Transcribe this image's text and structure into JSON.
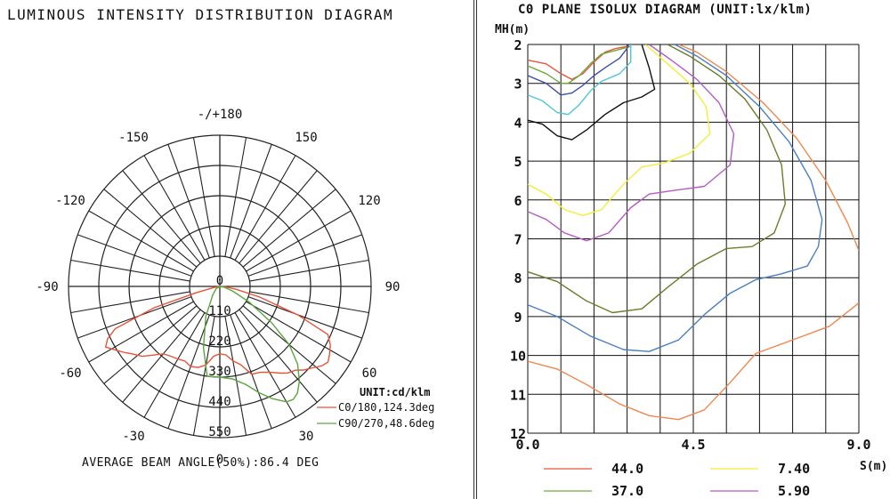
{
  "polar": {
    "title": "LUMINOUS INTENSITY DISTRIBUTION DIAGRAM",
    "footer": "AVERAGE BEAM ANGLE(50%):86.4 DEG",
    "unit_label": "UNIT:cd/klm",
    "legend": [
      {
        "label": "C0/180,124.3deg",
        "color": "#e8533a"
      },
      {
        "label": "C90/270,48.6deg",
        "color": "#5aa63c"
      }
    ]
  },
  "isolux": {
    "title": "C0 PLANE ISOLUX DIAGRAM (UNIT:lx/klm)",
    "y_axis_label": "MH(m)",
    "x_axis_label": "S(m)",
    "legend": [
      {
        "value": "44.0",
        "color": "#e8533a"
      },
      {
        "value": "7.40",
        "color": "#f2ee3a"
      },
      {
        "value": "37.0",
        "color": "#6faa3c"
      },
      {
        "value": "5.90",
        "color": "#b45cc4"
      }
    ]
  },
  "chart_data": [
    {
      "type": "polar",
      "title": "LUMINOUS INTENSITY DISTRIBUTION DIAGRAM",
      "unit": "cd/klm",
      "radial_ticks": [
        0,
        110,
        220,
        330,
        440,
        550
      ],
      "radial_max": 550,
      "angle_ticks": [
        "-/+180",
        "150",
        "120",
        "90",
        "60",
        "30",
        "0",
        "-30",
        "-60",
        "-90",
        "-120",
        "-150"
      ],
      "grid": true,
      "series": [
        {
          "name": "C0/180,124.3deg",
          "color": "#e8533a",
          "points": [
            [
              -90,
              0
            ],
            [
              -80,
              20
            ],
            [
              -75,
              90
            ],
            [
              -72,
              250
            ],
            [
              -68,
              410
            ],
            [
              -65,
              450
            ],
            [
              -62,
              470
            ],
            [
              -58,
              440
            ],
            [
              -55,
              420
            ],
            [
              -52,
              400
            ],
            [
              -48,
              380
            ],
            [
              -45,
              355
            ],
            [
              -40,
              320
            ],
            [
              -35,
              310
            ],
            [
              -30,
              305
            ],
            [
              -25,
              300
            ],
            [
              -20,
              310
            ],
            [
              -15,
              305
            ],
            [
              -10,
              290
            ],
            [
              -5,
              255
            ],
            [
              0,
              245
            ],
            [
              5,
              250
            ],
            [
              10,
              275
            ],
            [
              15,
              295
            ],
            [
              20,
              340
            ],
            [
              25,
              345
            ],
            [
              30,
              360
            ],
            [
              35,
              385
            ],
            [
              38,
              400
            ],
            [
              42,
              410
            ],
            [
              45,
              430
            ],
            [
              48,
              445
            ],
            [
              52,
              470
            ],
            [
              55,
              480
            ],
            [
              58,
              470
            ],
            [
              62,
              455
            ],
            [
              66,
              430
            ],
            [
              70,
              300
            ],
            [
              75,
              150
            ],
            [
              80,
              60
            ],
            [
              85,
              20
            ],
            [
              90,
              0
            ]
          ]
        },
        {
          "name": "C90/270,48.6deg",
          "color": "#5aa63c",
          "points": [
            [
              -90,
              0
            ],
            [
              -60,
              15
            ],
            [
              -40,
              40
            ],
            [
              -25,
              120
            ],
            [
              -15,
              230
            ],
            [
              -8,
              330
            ],
            [
              0,
              330
            ],
            [
              8,
              340
            ],
            [
              15,
              370
            ],
            [
              20,
              410
            ],
            [
              25,
              450
            ],
            [
              28,
              470
            ],
            [
              30,
              485
            ],
            [
              33,
              490
            ],
            [
              36,
              480
            ],
            [
              40,
              450
            ],
            [
              45,
              400
            ],
            [
              50,
              330
            ],
            [
              55,
              230
            ],
            [
              62,
              120
            ],
            [
              70,
              50
            ],
            [
              80,
              15
            ],
            [
              90,
              0
            ]
          ]
        }
      ]
    },
    {
      "type": "line",
      "title": "C0 PLANE ISOLUX DIAGRAM (UNIT:lx/klm)",
      "xlabel": "S(m",
      "ylabel": "MH(m)",
      "xlim": [
        0,
        9
      ],
      "ylim": [
        2,
        12
      ],
      "y_reversed": true,
      "x_ticks": [
        0.0,
        4.5,
        9.0
      ],
      "y_ticks": [
        2,
        3,
        4,
        5,
        6,
        7,
        8,
        9,
        10,
        11,
        12
      ],
      "grid": true,
      "series": [
        {
          "name": "44.0",
          "color": "#e8533a",
          "points": [
            [
              0,
              2.4
            ],
            [
              0.5,
              2.5
            ],
            [
              0.9,
              2.75
            ],
            [
              1.2,
              2.9
            ],
            [
              1.5,
              2.75
            ],
            [
              1.8,
              2.45
            ],
            [
              2.1,
              2.2
            ],
            [
              2.4,
              2.1
            ],
            [
              2.7,
              2.05
            ]
          ]
        },
        {
          "name": "37.0",
          "color": "#6faa3c",
          "points": [
            [
              0,
              2.55
            ],
            [
              0.5,
              2.75
            ],
            [
              0.9,
              3.0
            ],
            [
              1.1,
              3.0
            ],
            [
              1.4,
              2.8
            ],
            [
              1.7,
              2.5
            ],
            [
              2.0,
              2.25
            ],
            [
              2.4,
              2.15
            ],
            [
              2.8,
              2.05
            ]
          ]
        },
        {
          "name": "",
          "color": "#3b4fa8",
          "points": [
            [
              0,
              2.8
            ],
            [
              0.5,
              3.0
            ],
            [
              0.9,
              3.3
            ],
            [
              1.2,
              3.25
            ],
            [
              1.5,
              3.05
            ],
            [
              1.8,
              2.8
            ],
            [
              2.1,
              2.6
            ],
            [
              2.5,
              2.35
            ],
            [
              2.7,
              2.1
            ],
            [
              2.75,
              2.0
            ]
          ]
        },
        {
          "name": "",
          "color": "#4fc6d4",
          "points": [
            [
              0,
              3.3
            ],
            [
              0.4,
              3.45
            ],
            [
              0.8,
              3.75
            ],
            [
              1.1,
              3.8
            ],
            [
              1.4,
              3.55
            ],
            [
              1.7,
              3.2
            ],
            [
              2.0,
              2.95
            ],
            [
              2.5,
              2.75
            ],
            [
              2.8,
              2.45
            ],
            [
              2.8,
              2.0
            ]
          ]
        },
        {
          "name": "",
          "color": "#111111",
          "points": [
            [
              0,
              3.95
            ],
            [
              0.4,
              4.05
            ],
            [
              0.8,
              4.35
            ],
            [
              1.2,
              4.45
            ],
            [
              1.6,
              4.2
            ],
            [
              2.1,
              3.8
            ],
            [
              2.6,
              3.5
            ],
            [
              3.1,
              3.35
            ],
            [
              3.45,
              3.15
            ],
            [
              3.3,
              2.6
            ],
            [
              3.1,
              2.0
            ]
          ]
        },
        {
          "name": "7.40",
          "color": "#f2ee3a",
          "points": [
            [
              0,
              5.6
            ],
            [
              0.5,
              5.85
            ],
            [
              1.0,
              6.25
            ],
            [
              1.5,
              6.4
            ],
            [
              2.0,
              6.25
            ],
            [
              2.6,
              5.6
            ],
            [
              3.1,
              5.15
            ],
            [
              3.7,
              5.05
            ],
            [
              4.4,
              4.8
            ],
            [
              4.95,
              4.3
            ],
            [
              4.85,
              3.6
            ],
            [
              4.4,
              3.0
            ],
            [
              3.8,
              2.5
            ],
            [
              3.2,
              2.0
            ]
          ]
        },
        {
          "name": "5.90",
          "color": "#b45cc4",
          "points": [
            [
              0,
              6.3
            ],
            [
              0.5,
              6.5
            ],
            [
              1.0,
              6.85
            ],
            [
              1.6,
              7.05
            ],
            [
              2.2,
              6.85
            ],
            [
              2.8,
              6.2
            ],
            [
              3.3,
              5.85
            ],
            [
              4.0,
              5.75
            ],
            [
              4.8,
              5.65
            ],
            [
              5.5,
              5.1
            ],
            [
              5.6,
              4.3
            ],
            [
              5.2,
              3.5
            ],
            [
              4.6,
              2.9
            ],
            [
              3.9,
              2.4
            ],
            [
              3.3,
              2.0
            ]
          ]
        },
        {
          "name": "",
          "color": "#6b7d2c",
          "points": [
            [
              0,
              7.85
            ],
            [
              0.8,
              8.1
            ],
            [
              1.6,
              8.6
            ],
            [
              2.3,
              8.9
            ],
            [
              3.1,
              8.8
            ],
            [
              3.8,
              8.25
            ],
            [
              4.6,
              7.65
            ],
            [
              5.4,
              7.25
            ],
            [
              6.1,
              7.2
            ],
            [
              6.7,
              6.85
            ],
            [
              7.0,
              6.1
            ],
            [
              6.9,
              5.1
            ],
            [
              6.5,
              4.2
            ],
            [
              5.9,
              3.4
            ],
            [
              5.2,
              2.8
            ],
            [
              4.4,
              2.3
            ],
            [
              3.8,
              2.0
            ]
          ]
        },
        {
          "name": "",
          "color": "#4a7fc4",
          "points": [
            [
              0,
              8.7
            ],
            [
              0.8,
              9.0
            ],
            [
              1.7,
              9.5
            ],
            [
              2.6,
              9.85
            ],
            [
              3.3,
              9.9
            ],
            [
              4.1,
              9.6
            ],
            [
              4.8,
              8.95
            ],
            [
              5.5,
              8.4
            ],
            [
              6.2,
              8.05
            ],
            [
              6.9,
              7.9
            ],
            [
              7.6,
              7.7
            ],
            [
              7.9,
              7.2
            ],
            [
              8.0,
              6.5
            ],
            [
              7.7,
              5.5
            ],
            [
              7.1,
              4.5
            ],
            [
              6.3,
              3.6
            ],
            [
              5.4,
              2.8
            ],
            [
              4.6,
              2.3
            ],
            [
              4.0,
              2.0
            ]
          ]
        },
        {
          "name": "",
          "color": "#f08850",
          "points": [
            [
              0,
              10.15
            ],
            [
              0.8,
              10.35
            ],
            [
              1.6,
              10.75
            ],
            [
              2.5,
              11.25
            ],
            [
              3.3,
              11.55
            ],
            [
              4.1,
              11.65
            ],
            [
              4.8,
              11.4
            ],
            [
              5.5,
              10.7
            ],
            [
              6.2,
              9.95
            ],
            [
              7.2,
              9.6
            ],
            [
              8.2,
              9.25
            ],
            [
              9.0,
              8.65
            ]
          ]
        },
        {
          "name": "",
          "color": "#f08850",
          "points": [
            [
              9.0,
              7.3
            ],
            [
              8.7,
              6.6
            ],
            [
              8.1,
              5.5
            ],
            [
              7.3,
              4.4
            ],
            [
              6.4,
              3.5
            ],
            [
              5.4,
              2.7
            ],
            [
              4.6,
              2.2
            ],
            [
              4.1,
              2.0
            ]
          ]
        }
      ]
    }
  ]
}
